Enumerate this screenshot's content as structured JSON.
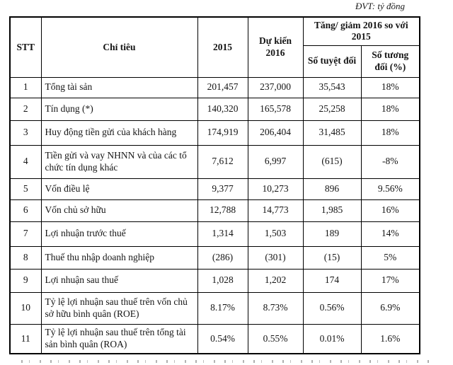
{
  "unit_note": "ĐVT: tỷ đồng",
  "table": {
    "headers": {
      "stt": "STT",
      "chi_tieu": "Chỉ tiêu",
      "y2015": "2015",
      "du_kien_2016": "Dự kiến 2016",
      "tang_giam_2016": "Tăng/ giảm 2016 so với 2015",
      "so_tuyet_doi": "Số tuyệt đối",
      "so_tuong_doi": "Số tương đối (%)"
    },
    "rows": [
      {
        "stt": "1",
        "label": "Tổng tài sản",
        "v2015": "201,457",
        "v2016": "237,000",
        "abs": "35,543",
        "rel": "18%"
      },
      {
        "stt": "2",
        "label": "Tín dụng (*)",
        "v2015": "140,320",
        "v2016": "165,578",
        "abs": "25,258",
        "rel": "18%"
      },
      {
        "stt": "3",
        "label": "Huy động tiền gửi của khách hàng",
        "v2015": "174,919",
        "v2016": "206,404",
        "abs": "31,485",
        "rel": "18%"
      },
      {
        "stt": "4",
        "label": "Tiền gửi và vay NHNN và của các tổ chức tín dụng khác",
        "v2015": "7,612",
        "v2016": "6,997",
        "abs": "(615)",
        "rel": "-8%"
      },
      {
        "stt": "5",
        "label": "Vốn điều lệ",
        "v2015": "9,377",
        "v2016": "10,273",
        "abs": "896",
        "rel": "9.56%"
      },
      {
        "stt": "6",
        "label": "Vốn chủ sở hữu",
        "v2015": "12,788",
        "v2016": "14,773",
        "abs": "1,985",
        "rel": "16%"
      },
      {
        "stt": "7",
        "label": "Lợi nhuận trước thuế",
        "v2015": "1,314",
        "v2016": "1,503",
        "abs": "189",
        "rel": "14%"
      },
      {
        "stt": "8",
        "label": "Thuế thu nhập doanh nghiệp",
        "v2015": "(286)",
        "v2016": "(301)",
        "abs": "(15)",
        "rel": "5%"
      },
      {
        "stt": "9",
        "label": "Lợi nhuận sau thuế",
        "v2015": "1,028",
        "v2016": "1,202",
        "abs": "174",
        "rel": "17%"
      },
      {
        "stt": "10",
        "label": "Tỷ lệ lợi nhuận sau thuế trên vốn chủ sở hữu bình quân (ROE)",
        "v2015": "8.17%",
        "v2016": "8.73%",
        "abs": "0.56%",
        "rel": "6.9%"
      },
      {
        "stt": "11",
        "label": "Tỷ lệ lợi nhuận sau thuế trên tổng tài sản bình quân (ROA)",
        "v2015": "0.54%",
        "v2016": "0.55%",
        "abs": "0.01%",
        "rel": "1.6%"
      }
    ]
  }
}
